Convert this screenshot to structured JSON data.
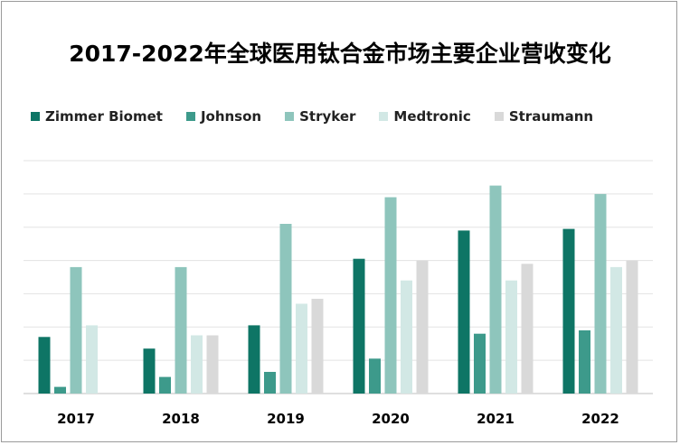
{
  "chart_data": {
    "type": "bar",
    "title": "2017-2022年全球医用钛合金市场主要企业营收变化",
    "xlabel": "",
    "ylabel": "",
    "categories": [
      "2017",
      "2018",
      "2019",
      "2020",
      "2021",
      "2022"
    ],
    "series": [
      {
        "name": "Zimmer Biomet",
        "color": "#0e7565",
        "values": [
          17,
          13.5,
          20.5,
          40.5,
          49,
          49.5
        ]
      },
      {
        "name": "Johnson",
        "color": "#3d9a8b",
        "values": [
          2,
          5,
          6.5,
          10.5,
          18,
          19
        ]
      },
      {
        "name": "Stryker",
        "color": "#8ec5bc",
        "values": [
          38,
          38,
          51,
          59,
          62.5,
          60
        ]
      },
      {
        "name": "Medtronic",
        "color": "#d2e8e5",
        "values": [
          20.5,
          17.5,
          27,
          34,
          34,
          38
        ]
      },
      {
        "name": "Straumann",
        "color": "#d9d9d9",
        "values": [
          0,
          17.5,
          28.5,
          40,
          39,
          40
        ]
      }
    ],
    "ylim": [
      0,
      70
    ],
    "grid": true,
    "legend_position": "top-left"
  }
}
